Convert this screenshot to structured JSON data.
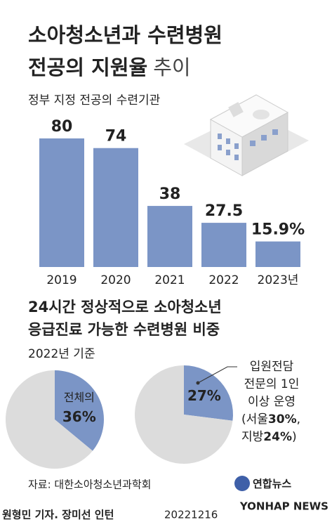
{
  "header": {
    "title_line1": "소아청소년과 수련병원",
    "title_line2": "전공의 지원율",
    "title_suffix": "추이"
  },
  "chart_data": [
    {
      "type": "bar",
      "subtitle": "정부 지정 전공의 수련기관",
      "categories": [
        "2019",
        "2020",
        "2021",
        "2022",
        "2023년"
      ],
      "values": [
        80,
        74,
        38,
        27.5,
        15.9
      ],
      "value_labels": [
        "80",
        "74",
        "38",
        "27.5",
        "15.9%"
      ],
      "color": "#7b95c6",
      "ylim": [
        0,
        80
      ]
    },
    {
      "type": "pie",
      "categories": [
        "전체의",
        null
      ],
      "values": [
        36,
        64
      ],
      "value_labels": [
        "36%",
        null
      ],
      "colors": [
        "#7b95c6",
        "#dcdcdc"
      ]
    },
    {
      "type": "pie",
      "categories": [
        null,
        null
      ],
      "values": [
        27,
        73
      ],
      "value_labels": [
        "27%",
        null
      ],
      "colors": [
        "#7b95c6",
        "#dcdcdc"
      ],
      "note_lines": [
        "입원전담",
        "전문의 1인",
        "이상 운영"
      ],
      "note_parts": [
        "(서울",
        {
          "value": 30,
          "label": "30%"
        },
        ",",
        "지방",
        {
          "value": 24,
          "label": "24%"
        },
        ")"
      ]
    }
  ],
  "section2": {
    "title_line1": "24시간 정상적으로 소아청소년",
    "title_line2": "응급진료 가능한 수련병원 비중",
    "subtitle": "2022년 기준"
  },
  "footer": {
    "source": "자료: 대한소아청소년과학회",
    "logo": "연합뉴스",
    "credit": "원형민 기자. 장미선 인턴",
    "date": "20221216",
    "watermark": "YONHAP NEWS"
  }
}
